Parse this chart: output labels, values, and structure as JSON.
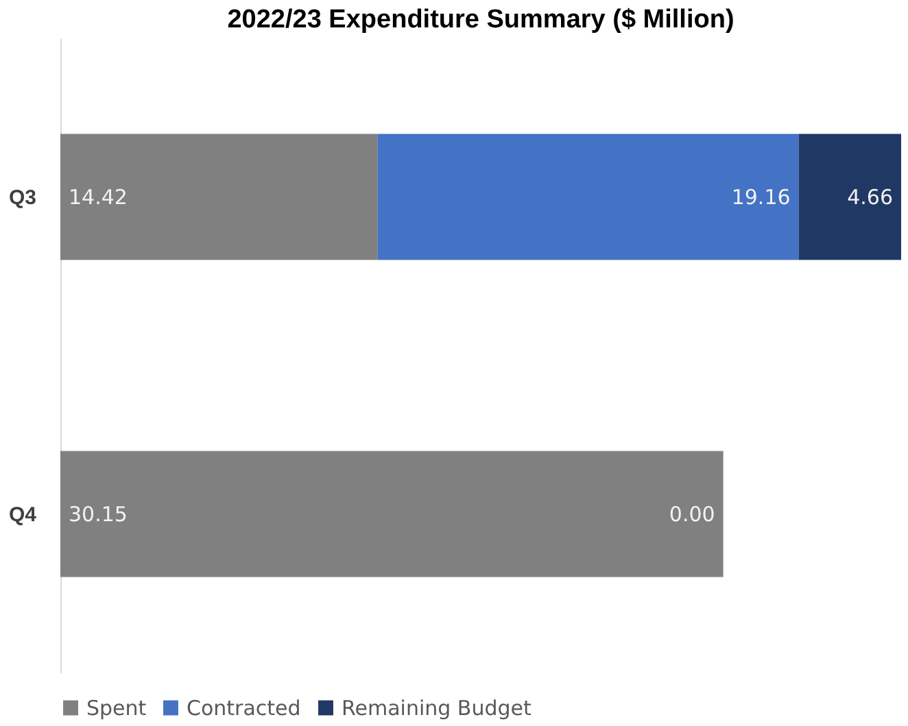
{
  "chart_data": {
    "type": "bar",
    "orientation": "horizontal",
    "stacked": true,
    "title": "2022/23 Expenditure Summary ($ Million)",
    "categories": [
      "Q3",
      "Q4"
    ],
    "xlim": [
      0,
      38.24
    ],
    "tick_labels": "y",
    "legend": "bottom",
    "series": [
      {
        "name": "Spent",
        "color": "#808080",
        "values": [
          14.42,
          30.15
        ],
        "value_labels": [
          "14.42",
          "30.15"
        ]
      },
      {
        "name": "Contracted",
        "color": "#4472c4",
        "values": [
          19.16,
          0
        ],
        "value_labels": [
          "19.16",
          null
        ]
      },
      {
        "name": "Remaining Budget",
        "color": "#203864",
        "values": [
          4.66,
          0
        ],
        "value_labels": [
          "4.66",
          "0.00"
        ]
      }
    ]
  }
}
